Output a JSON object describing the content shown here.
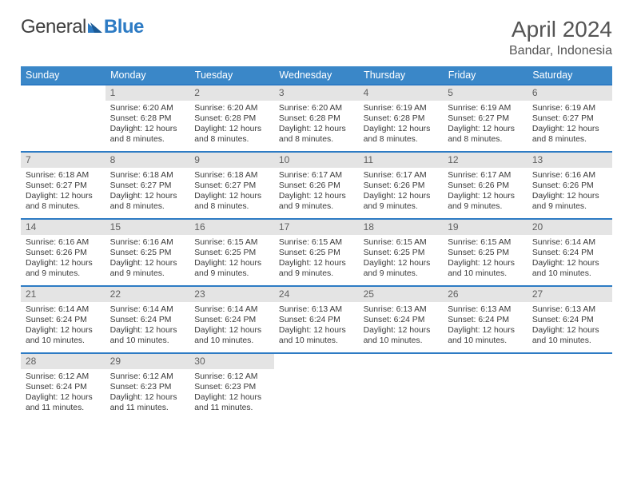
{
  "brand": {
    "word1": "General",
    "word2": "Blue"
  },
  "header": {
    "month_year": "April 2024",
    "location": "Bandar, Indonesia"
  },
  "colors": {
    "header_bg": "#3a87c8",
    "row_border": "#2d7bc4",
    "daynum_bg": "#e4e4e4",
    "text": "#3a3a3a",
    "brand_blue": "#2d7bc4"
  },
  "typography": {
    "month_fontsize_pt": 21,
    "location_fontsize_pt": 12,
    "dayheader_fontsize_pt": 9.5,
    "cell_fontsize_pt": 8,
    "font_family": "Arial"
  },
  "day_headers": [
    "Sunday",
    "Monday",
    "Tuesday",
    "Wednesday",
    "Thursday",
    "Friday",
    "Saturday"
  ],
  "weeks": [
    [
      {
        "day": "",
        "lines": []
      },
      {
        "day": "1",
        "lines": [
          "Sunrise: 6:20 AM",
          "Sunset: 6:28 PM",
          "Daylight: 12 hours and 8 minutes."
        ]
      },
      {
        "day": "2",
        "lines": [
          "Sunrise: 6:20 AM",
          "Sunset: 6:28 PM",
          "Daylight: 12 hours and 8 minutes."
        ]
      },
      {
        "day": "3",
        "lines": [
          "Sunrise: 6:20 AM",
          "Sunset: 6:28 PM",
          "Daylight: 12 hours and 8 minutes."
        ]
      },
      {
        "day": "4",
        "lines": [
          "Sunrise: 6:19 AM",
          "Sunset: 6:28 PM",
          "Daylight: 12 hours and 8 minutes."
        ]
      },
      {
        "day": "5",
        "lines": [
          "Sunrise: 6:19 AM",
          "Sunset: 6:27 PM",
          "Daylight: 12 hours and 8 minutes."
        ]
      },
      {
        "day": "6",
        "lines": [
          "Sunrise: 6:19 AM",
          "Sunset: 6:27 PM",
          "Daylight: 12 hours and 8 minutes."
        ]
      }
    ],
    [
      {
        "day": "7",
        "lines": [
          "Sunrise: 6:18 AM",
          "Sunset: 6:27 PM",
          "Daylight: 12 hours and 8 minutes."
        ]
      },
      {
        "day": "8",
        "lines": [
          "Sunrise: 6:18 AM",
          "Sunset: 6:27 PM",
          "Daylight: 12 hours and 8 minutes."
        ]
      },
      {
        "day": "9",
        "lines": [
          "Sunrise: 6:18 AM",
          "Sunset: 6:27 PM",
          "Daylight: 12 hours and 8 minutes."
        ]
      },
      {
        "day": "10",
        "lines": [
          "Sunrise: 6:17 AM",
          "Sunset: 6:26 PM",
          "Daylight: 12 hours and 9 minutes."
        ]
      },
      {
        "day": "11",
        "lines": [
          "Sunrise: 6:17 AM",
          "Sunset: 6:26 PM",
          "Daylight: 12 hours and 9 minutes."
        ]
      },
      {
        "day": "12",
        "lines": [
          "Sunrise: 6:17 AM",
          "Sunset: 6:26 PM",
          "Daylight: 12 hours and 9 minutes."
        ]
      },
      {
        "day": "13",
        "lines": [
          "Sunrise: 6:16 AM",
          "Sunset: 6:26 PM",
          "Daylight: 12 hours and 9 minutes."
        ]
      }
    ],
    [
      {
        "day": "14",
        "lines": [
          "Sunrise: 6:16 AM",
          "Sunset: 6:26 PM",
          "Daylight: 12 hours and 9 minutes."
        ]
      },
      {
        "day": "15",
        "lines": [
          "Sunrise: 6:16 AM",
          "Sunset: 6:25 PM",
          "Daylight: 12 hours and 9 minutes."
        ]
      },
      {
        "day": "16",
        "lines": [
          "Sunrise: 6:15 AM",
          "Sunset: 6:25 PM",
          "Daylight: 12 hours and 9 minutes."
        ]
      },
      {
        "day": "17",
        "lines": [
          "Sunrise: 6:15 AM",
          "Sunset: 6:25 PM",
          "Daylight: 12 hours and 9 minutes."
        ]
      },
      {
        "day": "18",
        "lines": [
          "Sunrise: 6:15 AM",
          "Sunset: 6:25 PM",
          "Daylight: 12 hours and 9 minutes."
        ]
      },
      {
        "day": "19",
        "lines": [
          "Sunrise: 6:15 AM",
          "Sunset: 6:25 PM",
          "Daylight: 12 hours and 10 minutes."
        ]
      },
      {
        "day": "20",
        "lines": [
          "Sunrise: 6:14 AM",
          "Sunset: 6:24 PM",
          "Daylight: 12 hours and 10 minutes."
        ]
      }
    ],
    [
      {
        "day": "21",
        "lines": [
          "Sunrise: 6:14 AM",
          "Sunset: 6:24 PM",
          "Daylight: 12 hours and 10 minutes."
        ]
      },
      {
        "day": "22",
        "lines": [
          "Sunrise: 6:14 AM",
          "Sunset: 6:24 PM",
          "Daylight: 12 hours and 10 minutes."
        ]
      },
      {
        "day": "23",
        "lines": [
          "Sunrise: 6:14 AM",
          "Sunset: 6:24 PM",
          "Daylight: 12 hours and 10 minutes."
        ]
      },
      {
        "day": "24",
        "lines": [
          "Sunrise: 6:13 AM",
          "Sunset: 6:24 PM",
          "Daylight: 12 hours and 10 minutes."
        ]
      },
      {
        "day": "25",
        "lines": [
          "Sunrise: 6:13 AM",
          "Sunset: 6:24 PM",
          "Daylight: 12 hours and 10 minutes."
        ]
      },
      {
        "day": "26",
        "lines": [
          "Sunrise: 6:13 AM",
          "Sunset: 6:24 PM",
          "Daylight: 12 hours and 10 minutes."
        ]
      },
      {
        "day": "27",
        "lines": [
          "Sunrise: 6:13 AM",
          "Sunset: 6:24 PM",
          "Daylight: 12 hours and 10 minutes."
        ]
      }
    ],
    [
      {
        "day": "28",
        "lines": [
          "Sunrise: 6:12 AM",
          "Sunset: 6:24 PM",
          "Daylight: 12 hours and 11 minutes."
        ]
      },
      {
        "day": "29",
        "lines": [
          "Sunrise: 6:12 AM",
          "Sunset: 6:23 PM",
          "Daylight: 12 hours and 11 minutes."
        ]
      },
      {
        "day": "30",
        "lines": [
          "Sunrise: 6:12 AM",
          "Sunset: 6:23 PM",
          "Daylight: 12 hours and 11 minutes."
        ]
      },
      {
        "day": "",
        "lines": []
      },
      {
        "day": "",
        "lines": []
      },
      {
        "day": "",
        "lines": []
      },
      {
        "day": "",
        "lines": []
      }
    ]
  ]
}
